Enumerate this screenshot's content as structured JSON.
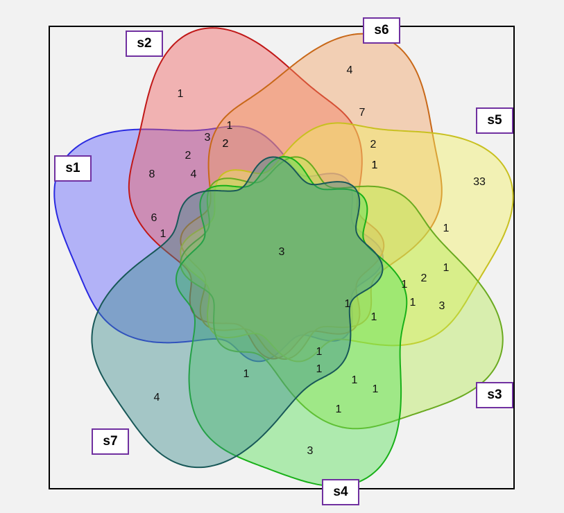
{
  "sets": {
    "s1": {
      "label": "s1",
      "color": "#2a2ae0",
      "fill": "#5a5aff"
    },
    "s2": {
      "label": "s2",
      "color": "#c01818",
      "fill": "#f05a5a"
    },
    "s3": {
      "label": "s3",
      "color": "#6aaa20",
      "fill": "#b6ea50"
    },
    "s4": {
      "label": "s4",
      "color": "#18b018",
      "fill": "#50e050"
    },
    "s5": {
      "label": "s5",
      "color": "#c8c020",
      "fill": "#f4f060"
    },
    "s6": {
      "label": "s6",
      "color": "#c86818",
      "fill": "#f4a060"
    },
    "s7": {
      "label": "s7",
      "color": "#185858",
      "fill": "#3a8a8a"
    }
  },
  "counts": [
    "1",
    "4",
    "7",
    "1",
    "3",
    "1",
    "2",
    "2",
    "2",
    "1",
    "8",
    "4",
    "2",
    "33",
    "6",
    "1",
    "1",
    "3",
    "1",
    "1",
    "2",
    "1",
    "1",
    "1",
    "3",
    "1",
    "1",
    "1",
    "1",
    "1",
    "1",
    "4",
    "3"
  ]
}
